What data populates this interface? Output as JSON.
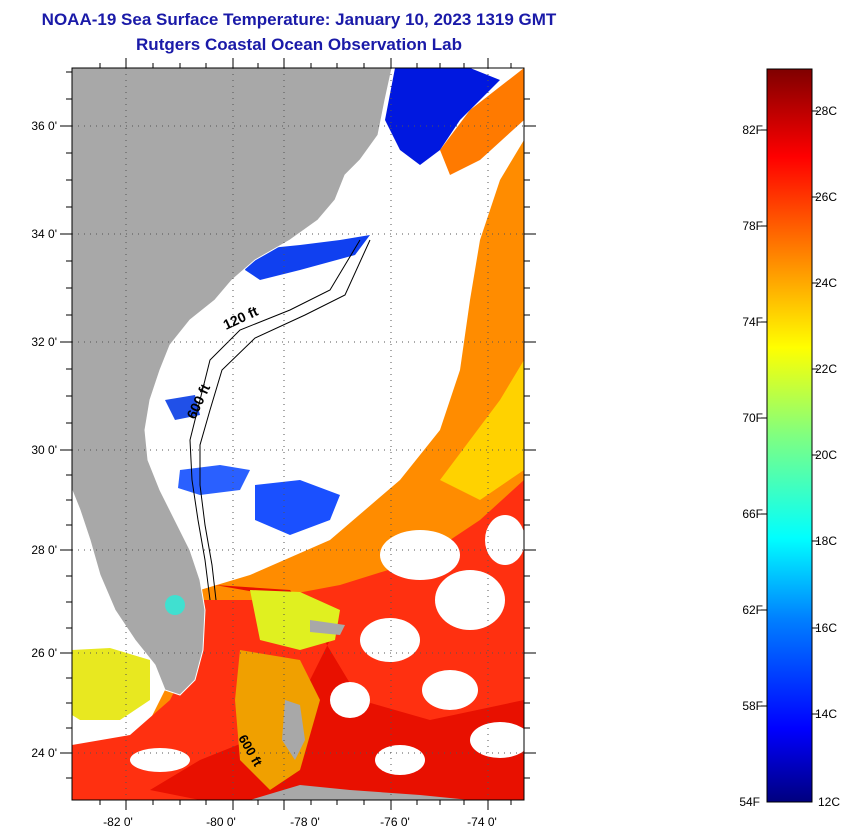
{
  "title": {
    "line1": "NOAA-19 Sea Surface Temperature:  January 10, 2023 1319 GMT",
    "line2": "Rutgers Coastal Ocean Observation Lab"
  },
  "map": {
    "lat_labels": [
      "36 0'",
      "34 0'",
      "32 0'",
      "30 0'",
      "28 0'",
      "26 0'",
      "24 0'"
    ],
    "lon_labels": [
      "-82 0'",
      "-80 0'",
      "-78 0'",
      "-76 0'",
      "-74 0'"
    ],
    "contours": [
      "120 ft",
      "600 ft",
      "600 ft"
    ],
    "land_color": "#a8a8a8",
    "cloud_color": "#ffffff"
  },
  "colorbar": {
    "f_labels": [
      "82F",
      "78F",
      "74F",
      "70F",
      "66F",
      "62F",
      "58F",
      "54F"
    ],
    "c_labels": [
      "28C",
      "26C",
      "24C",
      "22C",
      "20C",
      "18C",
      "16C",
      "14C",
      "12C"
    ],
    "min_c": 12,
    "max_c": 29.1
  }
}
